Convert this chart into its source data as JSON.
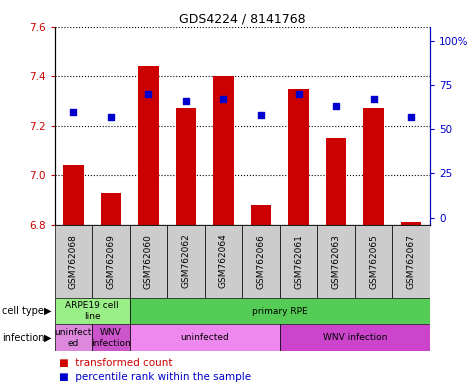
{
  "title": "GDS4224 / 8141768",
  "samples": [
    "GSM762068",
    "GSM762069",
    "GSM762060",
    "GSM762062",
    "GSM762064",
    "GSM762066",
    "GSM762061",
    "GSM762063",
    "GSM762065",
    "GSM762067"
  ],
  "transformed_counts": [
    7.04,
    6.93,
    7.44,
    7.27,
    7.4,
    6.88,
    7.35,
    7.15,
    7.27,
    6.81
  ],
  "percentile_ranks": [
    60,
    57,
    70,
    66,
    67,
    58,
    70,
    63,
    67,
    57
  ],
  "ylim": [
    6.8,
    7.6
  ],
  "yticks": [
    6.8,
    7.0,
    7.2,
    7.4,
    7.6
  ],
  "y2ticks": [
    0,
    25,
    50,
    75,
    100
  ],
  "y2labels": [
    "0",
    "25",
    "50",
    "75",
    "100%"
  ],
  "bar_color": "#cc0000",
  "dot_color": "#0000cc",
  "cell_types": [
    {
      "label": "ARPE19 cell\nline",
      "start": 0,
      "end": 2,
      "color": "#99ee88"
    },
    {
      "label": "primary RPE",
      "start": 2,
      "end": 10,
      "color": "#55cc55"
    }
  ],
  "infections": [
    {
      "label": "uninfect\ned",
      "start": 0,
      "end": 1,
      "color": "#dd88dd"
    },
    {
      "label": "WNV\ninfection",
      "start": 1,
      "end": 2,
      "color": "#cc55cc"
    },
    {
      "label": "uninfected",
      "start": 2,
      "end": 6,
      "color": "#ee88ee"
    },
    {
      "label": "WNV infection",
      "start": 6,
      "end": 10,
      "color": "#cc44cc"
    }
  ],
  "tick_color_left": "#cc0000",
  "tick_color_right": "#0000cc",
  "bar_bottom": 6.8,
  "sample_box_color": "#cccccc",
  "bg_color": "#ffffff"
}
